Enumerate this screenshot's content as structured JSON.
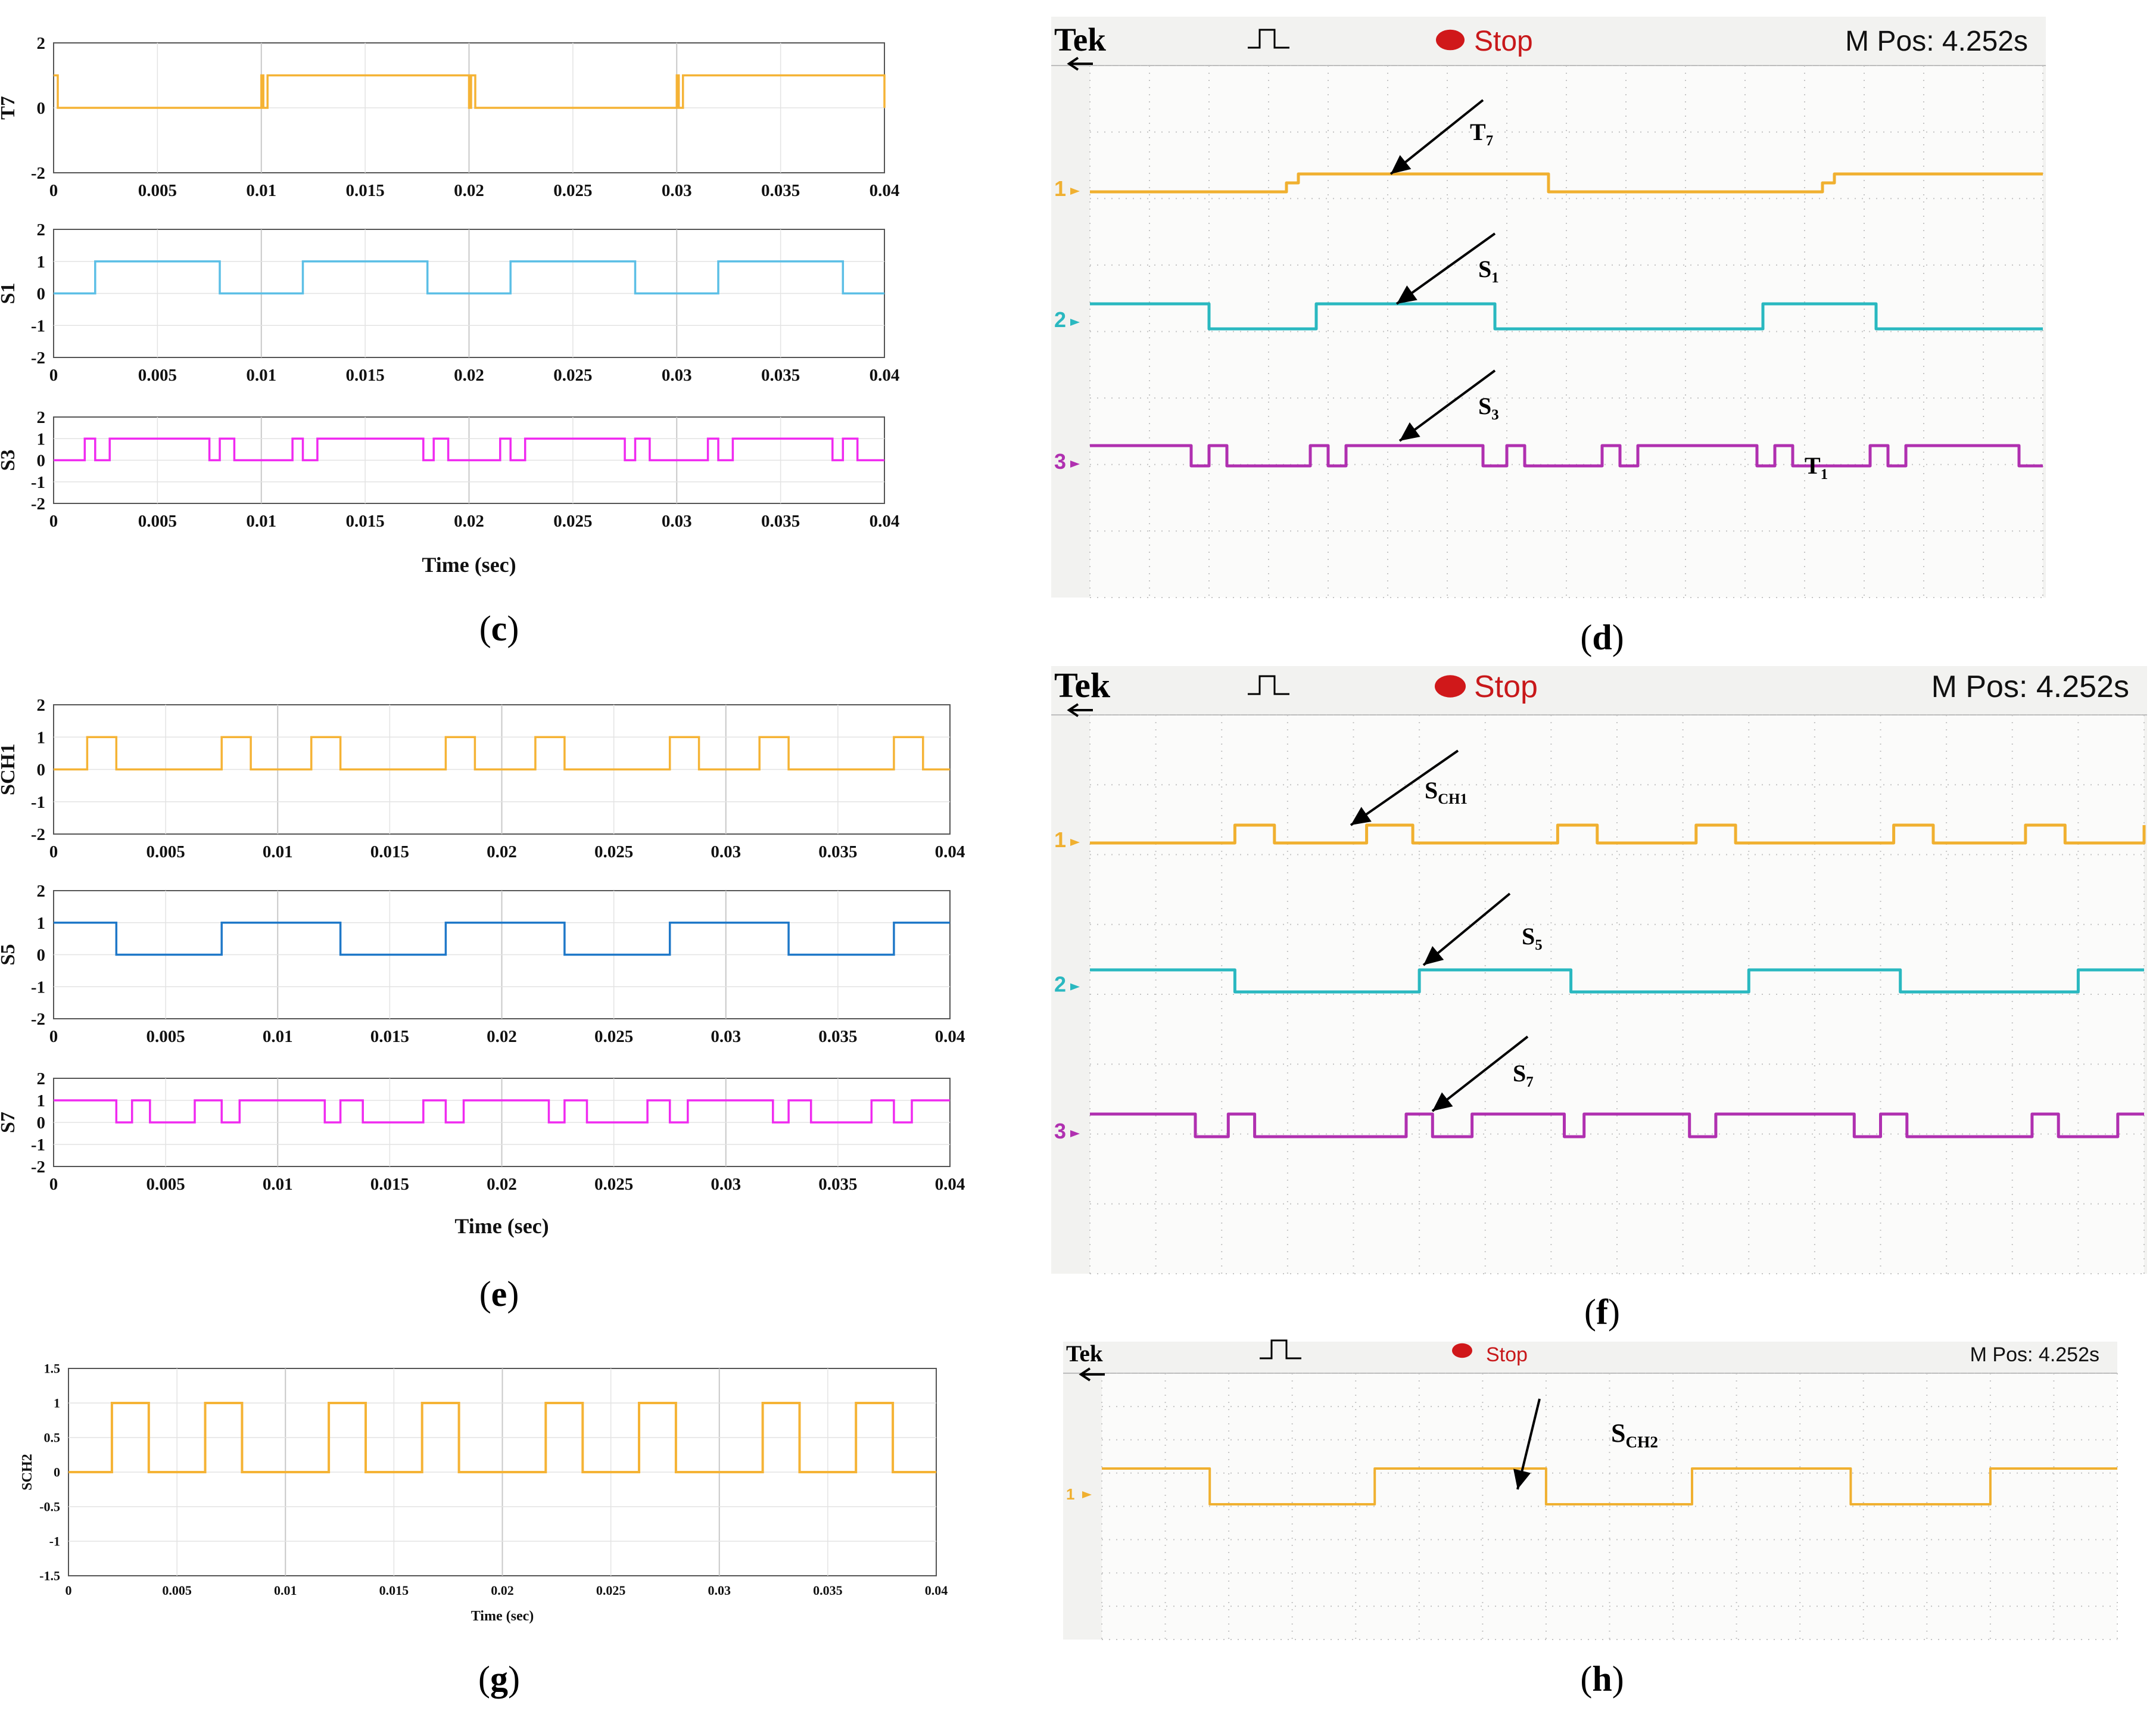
{
  "captions": {
    "c": "c",
    "d": "d",
    "e": "e",
    "f": "f",
    "g": "g",
    "h": "h"
  },
  "colors": {
    "orange": "#f0b030",
    "cyan": "#2ab8c0",
    "magenta": "#b030b0",
    "sim_orange": "#f5b335",
    "sim_lightblue": "#5cbfe6",
    "sim_blue": "#1f78c8",
    "sim_magenta": "#f02af0",
    "stop_red": "#d0181a"
  },
  "scope": {
    "brand": "Tek",
    "status": "Stop",
    "mpos": "M Pos: 4.252s",
    "ch1": "1",
    "ch2": "2",
    "ch3": "3"
  },
  "annotations": {
    "d": [
      {
        "main": "T",
        "sub": "7"
      },
      {
        "main": "S",
        "sub": "1"
      },
      {
        "main": "S",
        "sub": "3"
      },
      {
        "main": "T",
        "sub": "1"
      }
    ],
    "f": [
      {
        "main": "S",
        "sub": "CH1"
      },
      {
        "main": "S",
        "sub": "5"
      },
      {
        "main": "S",
        "sub": "7"
      }
    ],
    "h": [
      {
        "main": "S",
        "sub": "CH2"
      }
    ]
  },
  "chart_data": [
    {
      "panel": "c",
      "type": "line",
      "xlabel": "Time (sec)",
      "xticks": [
        "0",
        "0.005",
        "0.01",
        "0.015",
        "0.02",
        "0.025",
        "0.03",
        "0.035",
        "0.04"
      ],
      "xlim": [
        0,
        0.04
      ],
      "subplots": [
        {
          "ylabel": "T7",
          "ylim": [
            -2,
            2
          ],
          "yticks": [
            "2",
            "0",
            "-2"
          ],
          "color": "#f5b335",
          "x": [
            0,
            0.0002,
            0.0002,
            0.01,
            0.01,
            0.0101,
            0.0101,
            0.0103,
            0.0103,
            0.02,
            0.02,
            0.0201,
            0.0201,
            0.0203,
            0.0203,
            0.03,
            0.03,
            0.0301,
            0.0301,
            0.0303,
            0.0303,
            0.04,
            0.04
          ],
          "y": [
            1,
            1,
            0,
            0,
            1,
            1,
            0,
            0,
            1,
            1,
            0,
            0,
            1,
            1,
            0,
            0,
            1,
            1,
            0,
            0,
            1,
            1,
            0
          ]
        },
        {
          "ylabel": "S1",
          "ylim": [
            -2,
            2
          ],
          "yticks": [
            "2",
            "1",
            "0",
            "-1",
            "-2"
          ],
          "color": "#5cbfe6",
          "x": [
            0,
            0.002,
            0.002,
            0.008,
            0.008,
            0.012,
            0.012,
            0.018,
            0.018,
            0.022,
            0.022,
            0.028,
            0.028,
            0.032,
            0.032,
            0.038,
            0.038,
            0.04
          ],
          "y": [
            0,
            0,
            1,
            1,
            0,
            0,
            1,
            1,
            0,
            0,
            1,
            1,
            0,
            0,
            1,
            1,
            0,
            0
          ]
        },
        {
          "ylabel": "S3",
          "ylim": [
            -2,
            2
          ],
          "yticks": [
            "2",
            "1",
            "0",
            "-1",
            "-2"
          ],
          "color": "#f02af0",
          "x": [
            0,
            0.0015,
            0.0015,
            0.002,
            0.002,
            0.0027,
            0.0027,
            0.0075,
            0.0075,
            0.008,
            0.008,
            0.0087,
            0.0087,
            0.0115,
            0.0115,
            0.012,
            0.012,
            0.0127,
            0.0127,
            0.0178,
            0.0178,
            0.0183,
            0.0183,
            0.019,
            0.019,
            0.0215,
            0.0215,
            0.022,
            0.022,
            0.0227,
            0.0227,
            0.0275,
            0.0275,
            0.028,
            0.028,
            0.0287,
            0.0287,
            0.0315,
            0.0315,
            0.032,
            0.032,
            0.0327,
            0.0327,
            0.0375,
            0.0375,
            0.038,
            0.038,
            0.0387,
            0.0387,
            0.04
          ],
          "y": [
            0,
            0,
            1,
            1,
            0,
            0,
            1,
            1,
            0,
            0,
            1,
            1,
            0,
            0,
            1,
            1,
            0,
            0,
            1,
            1,
            0,
            0,
            1,
            1,
            0,
            0,
            1,
            1,
            0,
            0,
            1,
            1,
            0,
            0,
            1,
            1,
            0,
            0,
            1,
            1,
            0,
            0,
            1,
            1,
            0,
            0,
            1,
            1,
            0,
            0
          ]
        }
      ]
    },
    {
      "panel": "e",
      "type": "line",
      "xlabel": "Time (sec)",
      "xticks": [
        "0",
        "0.005",
        "0.01",
        "0.015",
        "0.02",
        "0.025",
        "0.03",
        "0.035",
        "0.04"
      ],
      "xlim": [
        0,
        0.04
      ],
      "subplots": [
        {
          "ylabel": "SCH1",
          "ylim": [
            -2,
            2
          ],
          "yticks": [
            "2",
            "1",
            "0",
            "-1",
            "-2"
          ],
          "color": "#f5b335",
          "x": [
            0,
            0.0015,
            0.0015,
            0.0028,
            0.0028,
            0.0075,
            0.0075,
            0.0088,
            0.0088,
            0.0115,
            0.0115,
            0.0128,
            0.0128,
            0.0175,
            0.0175,
            0.0188,
            0.0188,
            0.0215,
            0.0215,
            0.0228,
            0.0228,
            0.0275,
            0.0275,
            0.0288,
            0.0288,
            0.0315,
            0.0315,
            0.0328,
            0.0328,
            0.0375,
            0.0375,
            0.0388,
            0.0388,
            0.04
          ],
          "y": [
            0,
            0,
            1,
            1,
            0,
            0,
            1,
            1,
            0,
            0,
            1,
            1,
            0,
            0,
            1,
            1,
            0,
            0,
            1,
            1,
            0,
            0,
            1,
            1,
            0,
            0,
            1,
            1,
            0,
            0,
            1,
            1,
            0,
            0
          ]
        },
        {
          "ylabel": "S5",
          "ylim": [
            -2,
            2
          ],
          "yticks": [
            "2",
            "1",
            "0",
            "-1",
            "-2"
          ],
          "color": "#1f78c8",
          "x": [
            0,
            0.0028,
            0.0028,
            0.0075,
            0.0075,
            0.0128,
            0.0128,
            0.0175,
            0.0175,
            0.0228,
            0.0228,
            0.0275,
            0.0275,
            0.0328,
            0.0328,
            0.0375,
            0.0375,
            0.04
          ],
          "y": [
            1,
            1,
            0,
            0,
            1,
            1,
            0,
            0,
            1,
            1,
            0,
            0,
            1,
            1,
            0,
            0,
            1,
            1
          ]
        },
        {
          "ylabel": "S7",
          "ylim": [
            -2,
            2
          ],
          "yticks": [
            "2",
            "1",
            "0",
            "-1",
            "-2"
          ],
          "color": "#f02af0",
          "x": [
            0,
            0.0028,
            0.0028,
            0.0035,
            0.0035,
            0.0043,
            0.0043,
            0.0063,
            0.0063,
            0.0075,
            0.0075,
            0.0083,
            0.0083,
            0.0121,
            0.0121,
            0.0128,
            0.0128,
            0.0138,
            0.0138,
            0.0165,
            0.0165,
            0.0175,
            0.0175,
            0.0183,
            0.0183,
            0.0221,
            0.0221,
            0.0228,
            0.0228,
            0.0238,
            0.0238,
            0.0265,
            0.0265,
            0.0275,
            0.0275,
            0.0283,
            0.0283,
            0.0321,
            0.0321,
            0.0328,
            0.0328,
            0.0338,
            0.0338,
            0.0365,
            0.0365,
            0.0375,
            0.0375,
            0.0383,
            0.0383,
            0.04
          ],
          "y": [
            1,
            1,
            0,
            0,
            1,
            1,
            0,
            0,
            1,
            1,
            0,
            0,
            1,
            1,
            0,
            0,
            1,
            1,
            0,
            0,
            1,
            1,
            0,
            0,
            1,
            1,
            0,
            0,
            1,
            1,
            0,
            0,
            1,
            1,
            0,
            0,
            1,
            1,
            0,
            0,
            1,
            1,
            0,
            0,
            1,
            1,
            0,
            0,
            1,
            1
          ]
        }
      ]
    },
    {
      "panel": "g",
      "type": "line",
      "xlabel": "Time (sec)",
      "xticks": [
        "0",
        "0.005",
        "0.01",
        "0.015",
        "0.02",
        "0.025",
        "0.03",
        "0.035",
        "0.04"
      ],
      "xlim": [
        0,
        0.04
      ],
      "subplots": [
        {
          "ylabel": "SCH2",
          "ylim": [
            -1.5,
            1.5
          ],
          "yticks": [
            "1.5",
            "1",
            "0.5",
            "0",
            "-0.5",
            "-1",
            "-1.5"
          ],
          "color": "#f5b335",
          "x": [
            0,
            0.002,
            0.002,
            0.0037,
            0.0037,
            0.0063,
            0.0063,
            0.008,
            0.008,
            0.012,
            0.012,
            0.0137,
            0.0137,
            0.0163,
            0.0163,
            0.018,
            0.018,
            0.022,
            0.022,
            0.0237,
            0.0237,
            0.0263,
            0.0263,
            0.028,
            0.028,
            0.032,
            0.032,
            0.0337,
            0.0337,
            0.0363,
            0.0363,
            0.038,
            0.038,
            0.04
          ],
          "y": [
            0,
            0,
            1,
            1,
            0,
            0,
            1,
            1,
            0,
            0,
            1,
            1,
            0,
            0,
            1,
            1,
            0,
            0,
            1,
            1,
            0,
            0,
            1,
            1,
            0,
            0,
            1,
            1,
            0,
            0,
            1,
            1,
            0,
            0
          ]
        }
      ]
    },
    {
      "panel": "d",
      "type": "line",
      "note": "oscilloscope traces (levels 0=low 1=high), time in screen divisions 0-16",
      "traces": [
        {
          "channel": "1",
          "color": "#f0b030",
          "t": [
            0,
            3.3,
            3.3,
            3.5,
            3.5,
            7.7,
            7.7,
            12.3,
            12.3,
            12.5,
            12.5,
            16
          ],
          "y": [
            0,
            0,
            0.5,
            0.5,
            1,
            1,
            0,
            0,
            0.5,
            0.5,
            1,
            1
          ]
        },
        {
          "channel": "2",
          "color": "#2ab8c0",
          "t": [
            0,
            2,
            2,
            3.8,
            3.8,
            6.8,
            6.8,
            11.3,
            11.3,
            13.2,
            13.2,
            16
          ],
          "y": [
            1,
            1,
            0,
            0,
            1,
            1,
            0,
            0,
            1,
            1,
            0,
            0
          ]
        },
        {
          "channel": "3",
          "color": "#b030b0",
          "t": [
            0,
            1.7,
            1.7,
            2,
            2,
            2.3,
            2.3,
            3.7,
            3.7,
            4,
            4,
            4.3,
            4.3,
            6.6,
            6.6,
            7,
            7,
            7.3,
            7.3,
            8.6,
            8.6,
            8.9,
            8.9,
            9.2,
            9.2,
            11.2,
            11.2,
            11.5,
            11.5,
            11.8,
            11.8,
            13.1,
            13.1,
            13.4,
            13.4,
            13.7,
            13.7,
            15.6,
            15.6,
            16
          ],
          "y": [
            1,
            1,
            0,
            0,
            1,
            1,
            0,
            0,
            1,
            1,
            0,
            0,
            1,
            1,
            0,
            0,
            1,
            1,
            0,
            0,
            1,
            1,
            0,
            0,
            1,
            1,
            0,
            0,
            1,
            1,
            0,
            0,
            1,
            1,
            0,
            0,
            1,
            1,
            0,
            0
          ]
        }
      ]
    },
    {
      "panel": "f",
      "type": "line",
      "note": "oscilloscope traces (levels 0=low 1=high), time in screen divisions 0-16",
      "traces": [
        {
          "channel": "1",
          "color": "#f0b030",
          "t": [
            0,
            2.2,
            2.2,
            2.8,
            2.8,
            4.2,
            4.2,
            4.9,
            4.9,
            7.1,
            7.1,
            7.7,
            7.7,
            9.2,
            9.2,
            9.8,
            9.8,
            12.2,
            12.2,
            12.8,
            12.8,
            14.2,
            14.2,
            14.8,
            14.8,
            16,
            16
          ],
          "y": [
            0,
            0,
            1,
            1,
            0,
            0,
            1,
            1,
            0,
            0,
            1,
            1,
            0,
            0,
            1,
            1,
            0,
            0,
            1,
            1,
            0,
            0,
            1,
            1,
            0,
            0,
            1
          ]
        },
        {
          "channel": "2",
          "color": "#2ab8c0",
          "t": [
            0,
            2.2,
            2.2,
            5,
            5,
            7.3,
            7.3,
            10,
            10,
            12.3,
            12.3,
            15,
            15,
            16
          ],
          "y": [
            1,
            1,
            0,
            0,
            1,
            1,
            0,
            0,
            1,
            1,
            0,
            0,
            1,
            1
          ]
        },
        {
          "channel": "3",
          "color": "#b030b0",
          "t": [
            0,
            1.6,
            1.6,
            2.1,
            2.1,
            2.5,
            2.5,
            4.8,
            4.8,
            5.2,
            5.2,
            5.8,
            5.8,
            7.2,
            7.2,
            7.5,
            7.5,
            9.1,
            9.1,
            9.5,
            9.5,
            11.6,
            11.6,
            12,
            12,
            12.4,
            12.4,
            14.3,
            14.3,
            14.7,
            14.7,
            15.6,
            15.6,
            16
          ],
          "y": [
            1,
            1,
            0,
            0,
            1,
            1,
            0,
            0,
            1,
            1,
            0,
            0,
            1,
            1,
            0,
            0,
            1,
            1,
            0,
            0,
            1,
            1,
            0,
            0,
            1,
            1,
            0,
            0,
            1,
            1,
            0,
            0,
            1,
            1
          ]
        }
      ]
    },
    {
      "panel": "h",
      "type": "line",
      "note": "oscilloscope trace (levels 0=low 1=high), time in screen divisions 0-16",
      "traces": [
        {
          "channel": "1",
          "color": "#f0b030",
          "t": [
            0,
            1.7,
            1.7,
            4.3,
            4.3,
            7,
            7,
            9.3,
            9.3,
            11.8,
            11.8,
            14,
            14,
            16
          ],
          "y": [
            1,
            1,
            0,
            0,
            1,
            1,
            0,
            0,
            1,
            1,
            0,
            0,
            1,
            1
          ]
        }
      ]
    }
  ]
}
